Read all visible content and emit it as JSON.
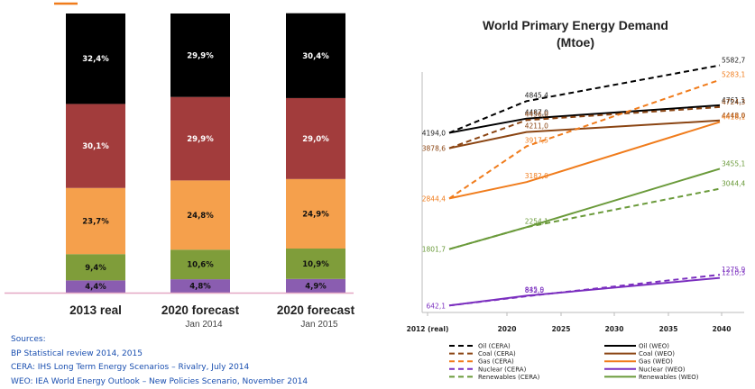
{
  "chart_data": [
    {
      "type": "bar",
      "stacked": true,
      "categories": [
        "2013 real",
        "2020 forecast",
        "2020 forecast"
      ],
      "category_subtitles": [
        "",
        "Jan 2014",
        "Jan 2015"
      ],
      "series": [
        {
          "values": [
            4.4,
            4.8,
            4.9
          ],
          "labels": [
            "4,4%",
            "4,8%",
            "4,9%"
          ],
          "color": "#8a5db0"
        },
        {
          "values": [
            9.4,
            10.6,
            10.9
          ],
          "labels": [
            "9,4%",
            "10,6%",
            "10,9%"
          ],
          "color": "#7f9d3a"
        },
        {
          "values": [
            23.7,
            24.8,
            24.9
          ],
          "labels": [
            "23,7%",
            "24,8%",
            "24,9%"
          ],
          "color": "#f5a04c"
        },
        {
          "values": [
            30.1,
            29.9,
            29.0
          ],
          "labels": [
            "30,1%",
            "29,9%",
            "29,0%"
          ],
          "color": "#a23c3c"
        },
        {
          "values": [
            32.4,
            29.9,
            30.4
          ],
          "labels": [
            "32,4%",
            "29,9%",
            "30,4%"
          ],
          "color": "#000000"
        }
      ],
      "ylim": [
        0,
        100
      ],
      "sources": [
        "Sources:",
        "BP Statistical review 2014, 2015",
        "CERA: IHS Long Term Energy Scenarios – Rivalry, July 2014",
        "WEO: IEA World Energy Outlook – New Policies Scenario, November 2014"
      ]
    },
    {
      "type": "line",
      "title": "World Primary Energy Demand",
      "subtitle": "(Mtoe)",
      "x_ticks": [
        "2012 (real)",
        "2020",
        "2025",
        "2030",
        "2035",
        "2040"
      ],
      "x": [
        2012,
        2020,
        2025,
        2030,
        2035,
        2040
      ],
      "ylim": [
        500,
        6000
      ],
      "legend_position": "bottom",
      "series": [
        {
          "name": "Oil (CERA)",
          "color": "#000000",
          "dashed": true,
          "x": [
            2012,
            2020,
            2040
          ],
          "y": [
            4194.0,
            4845.4,
            5582.7
          ],
          "labels": [
            {
              "text": "4194,0",
              "x": 2012,
              "y": 4194.0
            },
            {
              "text": "4845,4",
              "x": 2020,
              "y": 4845.4
            },
            {
              "text": "5582,7",
              "x": 2040,
              "y": 5582.7
            }
          ]
        },
        {
          "name": "Oil (WEO)",
          "color": "#000000",
          "dashed": false,
          "x": [
            2012,
            2020,
            2040
          ],
          "y": [
            4194.0,
            4487.0,
            4761.1
          ],
          "labels": [
            {
              "text": "4487,0",
              "x": 2020,
              "y": 4487.0
            },
            {
              "text": "4761,1",
              "x": 2040,
              "y": 4761.1
            }
          ]
        },
        {
          "name": "Coal (CERA)",
          "color": "#8b4513",
          "dashed": true,
          "x": [
            2012,
            2020,
            2040
          ],
          "y": [
            3878.6,
            4456.0,
            4724.3
          ],
          "labels": [
            {
              "text": "4456,0",
              "x": 2020,
              "y": 4456.0
            },
            {
              "text": "4724,3",
              "x": 2040,
              "y": 4724.3
            }
          ]
        },
        {
          "name": "Coal (WEO)",
          "color": "#8b4513",
          "dashed": false,
          "x": [
            2012,
            2020,
            2040
          ],
          "y": [
            3878.6,
            4211.0,
            4448.0
          ],
          "labels": [
            {
              "text": "3878,6",
              "x": 2012,
              "y": 3878.6
            },
            {
              "text": "4211,0",
              "x": 2020,
              "y": 4211.0
            },
            {
              "text": "4448,0",
              "x": 2040,
              "y": 4448.0
            }
          ]
        },
        {
          "name": "Gas (CERA)",
          "color": "#f07c1c",
          "dashed": true,
          "x": [
            2012,
            2020,
            2040
          ],
          "y": [
            2844.4,
            3917.5,
            5283.1
          ],
          "labels": [
            {
              "text": "3917,5",
              "x": 2020,
              "y": 3917.5
            },
            {
              "text": "5283,1",
              "x": 2040,
              "y": 5283.1
            }
          ]
        },
        {
          "name": "Gas (WEO)",
          "color": "#f07c1c",
          "dashed": false,
          "x": [
            2012,
            2020,
            2040
          ],
          "y": [
            2844.4,
            3182.0,
            4418.1
          ],
          "labels": [
            {
              "text": "2844,4",
              "x": 2012,
              "y": 2844.4
            },
            {
              "text": "3182,0",
              "x": 2020,
              "y": 3182.0
            },
            {
              "text": "4418,1",
              "x": 2040,
              "y": 4418.1
            }
          ]
        },
        {
          "name": "Nuclear (CERA)",
          "color": "#7b2fbf",
          "dashed": true,
          "x": [
            2012,
            2020,
            2040
          ],
          "y": [
            642.1,
            832.5,
            1275.9
          ],
          "labels": [
            {
              "text": "642,1",
              "x": 2012,
              "y": 642.1
            },
            {
              "text": "832,5",
              "x": 2020,
              "y": 832.5
            },
            {
              "text": "1275,9",
              "x": 2040,
              "y": 1275.9
            }
          ]
        },
        {
          "name": "Nuclear (WEO)",
          "color": "#7b2fbf",
          "dashed": false,
          "x": [
            2012,
            2020,
            2040
          ],
          "y": [
            642.1,
            845.0,
            1210.3
          ],
          "labels": [
            {
              "text": "845,0",
              "x": 2020,
              "y": 845.0
            },
            {
              "text": "1210,3",
              "x": 2040,
              "y": 1210.3
            }
          ]
        },
        {
          "name": "Renewables (CERA)",
          "color": "#6a9a3a",
          "dashed": true,
          "x": [
            2012,
            2020,
            2040
          ],
          "y": [
            1801.7,
            2254.1,
            3044.4
          ],
          "labels": [
            {
              "text": "1801,7",
              "x": 2012,
              "y": 1801.7
            },
            {
              "text": "2254,1",
              "x": 2020,
              "y": 2254.1
            },
            {
              "text": "3044,4",
              "x": 2040,
              "y": 3044.4
            }
          ]
        },
        {
          "name": "Renewables (WEO)",
          "color": "#6a9a3a",
          "dashed": false,
          "x": [
            2012,
            2020,
            2040
          ],
          "y": [
            1801.7,
            2254.1,
            3455.1
          ],
          "labels": [
            {
              "text": "3455,1",
              "x": 2040,
              "y": 3455.1
            }
          ]
        }
      ]
    }
  ]
}
